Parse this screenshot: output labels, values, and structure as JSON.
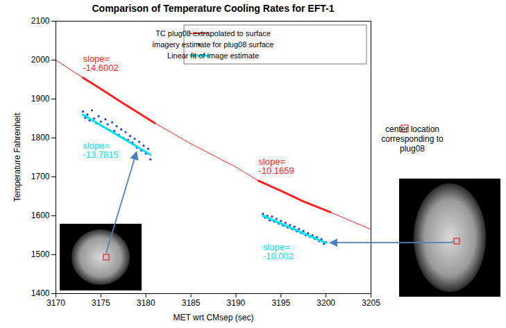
{
  "chart_data": {
    "type": "line",
    "title": "Comparison of Temperature Cooling Rates for EFT-1",
    "x_label": "MET wrt CMsep (sec)",
    "y_label": "Temperature Fahrenheit",
    "xlim": [
      3170,
      3205
    ],
    "xticks": [
      3170,
      3175,
      3180,
      3185,
      3190,
      3195,
      3200,
      3205
    ],
    "ylim": [
      1400,
      2100
    ],
    "yticks": [
      1400,
      1500,
      1600,
      1700,
      1800,
      1900,
      2000,
      2100
    ],
    "grid": false,
    "legend": "upper right",
    "slope_label": "slope=",
    "annotation": "center location corresponding to plug08",
    "series": [
      {
        "name": "TC plug08 extrapolated to surface",
        "type": "line",
        "line_style": "solid",
        "color": "#ff2020",
        "x": [
          3170,
          3173,
          3175,
          3177,
          3179,
          3181,
          3185,
          3190,
          3192.5,
          3195,
          3197.5,
          3200.5,
          3205
        ],
        "values": [
          2000,
          1955,
          1926,
          1896,
          1867,
          1838,
          1785,
          1725,
          1690,
          1664,
          1637,
          1609,
          1565
        ],
        "segments": [
          {
            "x": [
              3173,
              3181
            ],
            "slope": -14.6002
          },
          {
            "x": [
              3192.5,
              3200.5
            ],
            "slope": -10.1659
          }
        ]
      },
      {
        "name": "imagery estimate for plug08 surface",
        "type": "scatter",
        "marker": "dot",
        "color": "#1f3fdc",
        "x": [
          3173,
          3173.25,
          3173.5,
          3173.75,
          3174,
          3174.25,
          3174.5,
          3174.75,
          3175,
          3175.25,
          3175.5,
          3175.75,
          3176,
          3176.25,
          3176.5,
          3176.75,
          3177,
          3177.25,
          3177.5,
          3177.75,
          3178,
          3178.25,
          3178.5,
          3178.75,
          3179,
          3179.25,
          3179.5,
          3179.75,
          3180,
          3180.25,
          3180.5,
          3193,
          3193.25,
          3193.5,
          3193.75,
          3194,
          3194.25,
          3194.5,
          3194.75,
          3195,
          3195.25,
          3195.5,
          3195.75,
          3196,
          3196.25,
          3196.5,
          3196.75,
          3197,
          3197.25,
          3197.5,
          3197.75,
          3198,
          3198.25,
          3198.5,
          3198.75,
          3199,
          3199.25,
          3199.5,
          3199.75,
          3200
        ],
        "values": [
          1868,
          1852,
          1860,
          1845,
          1871,
          1850,
          1838,
          1856,
          1842,
          1829,
          1848,
          1835,
          1820,
          1840,
          1818,
          1830,
          1808,
          1822,
          1800,
          1815,
          1795,
          1805,
          1788,
          1798,
          1775,
          1790,
          1768,
          1780,
          1760,
          1772,
          1745,
          1605,
          1595,
          1600,
          1588,
          1598,
          1585,
          1592,
          1580,
          1587,
          1575,
          1582,
          1570,
          1576,
          1566,
          1572,
          1560,
          1566,
          1556,
          1561,
          1550,
          1555,
          1546,
          1550,
          1541,
          1545,
          1535,
          1540,
          1528,
          1532
        ]
      },
      {
        "name": "Linear fit of image estimate",
        "type": "line",
        "line_style": "solid",
        "color": "#00e0f0",
        "segments": [
          {
            "x": [
              3173,
              3180.5
            ],
            "values": [
              1860,
              1757
            ],
            "slope": -13.7815
          },
          {
            "x": [
              3193,
              3200
            ],
            "values": [
              1600,
              1530
            ],
            "slope": -10.002
          }
        ]
      }
    ]
  }
}
